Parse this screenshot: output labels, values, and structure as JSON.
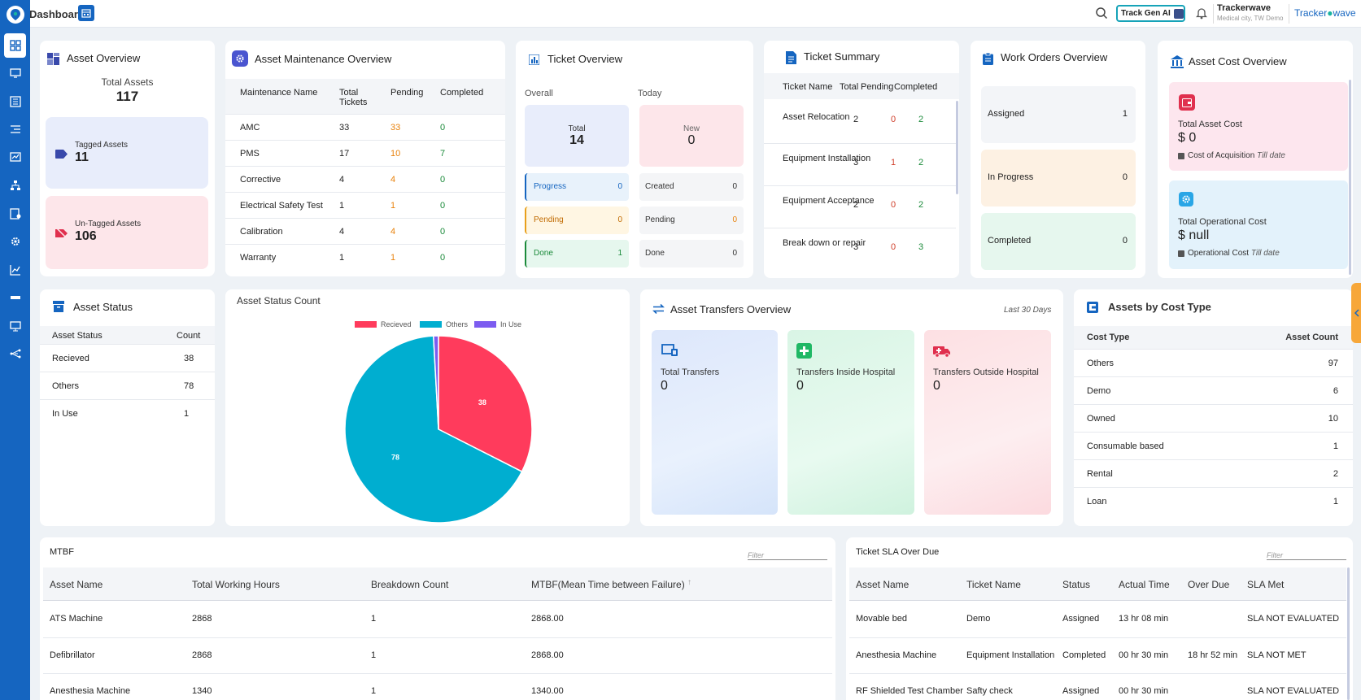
{
  "colors": {
    "brand": "#1565c0",
    "orange": "#e8820c",
    "green": "#1b8a3a",
    "red": "#d0402c",
    "pie_recieved": "#ff3b5c",
    "pie_others": "#00aed0",
    "pie_inuse": "#7c5cf0"
  },
  "header": {
    "title": "Dashboard",
    "track_gen_label": "Track Gen AI",
    "org_name": "Trackerwave",
    "org_sub": "Medical city, TW Demo",
    "brand_logo_a": "Tracker",
    "brand_logo_b": "wave"
  },
  "sidebar": {
    "items": [
      "dashboard-icon",
      "monitor-icon",
      "building-icon",
      "checklist-icon",
      "analytics-icon",
      "network-icon",
      "settings-list-icon",
      "gear-icon",
      "chart-line-icon",
      "minus-icon",
      "desktop-icon",
      "flow-icon"
    ]
  },
  "asset_overview": {
    "title": "Asset Overview",
    "total_label": "Total Assets",
    "total": "117",
    "tagged_label": "Tagged Assets",
    "tagged": "11",
    "untagged_label": "Un-Tagged Assets",
    "untagged": "106"
  },
  "maintenance": {
    "title": "Asset Maintenance Overview",
    "headers": [
      "Maintenance Name",
      "Total Tickets",
      "Pending",
      "Completed"
    ],
    "rows": [
      [
        "AMC",
        "33",
        "33",
        "0"
      ],
      [
        "PMS",
        "17",
        "10",
        "7"
      ],
      [
        "Corrective",
        "4",
        "4",
        "0"
      ],
      [
        "Electrical Safety Test",
        "1",
        "1",
        "0"
      ],
      [
        "Calibration",
        "4",
        "4",
        "0"
      ],
      [
        "Warranty",
        "1",
        "1",
        "0"
      ]
    ]
  },
  "ticket_overview": {
    "title": "Ticket Overview",
    "overall_label": "Overall",
    "today_label": "Today",
    "total_label": "Total",
    "total": "14",
    "new_label": "New",
    "new": "0",
    "left": [
      [
        "Progress",
        "0"
      ],
      [
        "Pending",
        "0"
      ],
      [
        "Done",
        "1"
      ]
    ],
    "right": [
      [
        "Created",
        "0"
      ],
      [
        "Pending",
        "0"
      ],
      [
        "Done",
        "0"
      ]
    ]
  },
  "ticket_summary": {
    "title": "Ticket Summary",
    "headers": [
      "Ticket Name",
      "Total",
      "Pending",
      "Completed"
    ],
    "rows": [
      [
        "Asset Relocation",
        "2",
        "0",
        "2"
      ],
      [
        "Equipment Installation",
        "3",
        "1",
        "2"
      ],
      [
        "Equipment Acceptance",
        "2",
        "0",
        "2"
      ],
      [
        "Break down or repair",
        "3",
        "0",
        "3"
      ]
    ]
  },
  "work_orders": {
    "title": "Work Orders Overview",
    "items": [
      [
        "Assigned",
        "1"
      ],
      [
        "In Progress",
        "0"
      ],
      [
        "Completed",
        "0"
      ]
    ]
  },
  "asset_cost": {
    "title": "Asset Cost Overview",
    "total_label": "Total Asset Cost",
    "total": "$ 0",
    "acq_label": "Cost of Acquisition",
    "acq_note": "Till date",
    "op_label": "Total Operational Cost",
    "op": "$ null",
    "op_sub": "Operational Cost",
    "op_note": "Till date"
  },
  "asset_status": {
    "title": "Asset Status",
    "headers": [
      "Asset Status",
      "Count"
    ],
    "rows": [
      [
        "Recieved",
        "38"
      ],
      [
        "Others",
        "78"
      ],
      [
        "In Use",
        "1"
      ]
    ]
  },
  "chart_data": {
    "type": "pie",
    "title": "Asset Status Count",
    "categories": [
      "Recieved",
      "Others",
      "In Use"
    ],
    "values": [
      38,
      78,
      1
    ],
    "data_labels": [
      "38",
      "78",
      ""
    ],
    "legend": "top"
  },
  "transfers": {
    "title": "Asset Transfers Overview",
    "period": "Last 30 Days",
    "items": [
      [
        "Total Transfers",
        "0"
      ],
      [
        "Transfers Inside Hospital",
        "0"
      ],
      [
        "Transfers Outside Hospital",
        "0"
      ]
    ]
  },
  "cost_type": {
    "title": "Assets by Cost Type",
    "headers": [
      "Cost Type",
      "Asset Count"
    ],
    "rows": [
      [
        "Others",
        "97"
      ],
      [
        "Demo",
        "6"
      ],
      [
        "Owned",
        "10"
      ],
      [
        "Consumable based",
        "1"
      ],
      [
        "Rental",
        "2"
      ],
      [
        "Loan",
        "1"
      ]
    ]
  },
  "mtbf": {
    "title": "MTBF",
    "filter": "Filter",
    "headers": [
      "Asset Name",
      "Total Working Hours",
      "Breakdown Count",
      "MTBF(Mean Time between Failure)"
    ],
    "rows": [
      [
        "ATS Machine",
        "2868",
        "1",
        "2868.00"
      ],
      [
        "Defibrillator",
        "2868",
        "1",
        "2868.00"
      ],
      [
        "Anesthesia Machine",
        "1340",
        "1",
        "1340.00"
      ]
    ]
  },
  "sla": {
    "title": "Ticket SLA Over Due",
    "filter": "Filter",
    "headers": [
      "Asset Name",
      "Ticket Name",
      "Status",
      "Actual Time",
      "Over Due",
      "SLA Met"
    ],
    "rows": [
      [
        "Movable bed",
        "Demo",
        "Assigned",
        "13 hr 08 min",
        "",
        "SLA NOT EVALUATED"
      ],
      [
        "Anesthesia Machine",
        "Equipment Installation",
        "Completed",
        "00 hr 30 min",
        "18 hr 52 min",
        "SLA NOT MET"
      ],
      [
        "RF Shielded Test Chamber",
        "Safty check",
        "Assigned",
        "00 hr 30 min",
        "",
        "SLA NOT EVALUATED"
      ]
    ]
  }
}
